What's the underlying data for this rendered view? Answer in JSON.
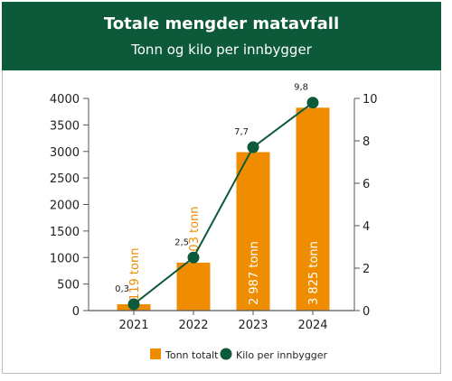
{
  "header": {
    "title": "Totale mengder matavfall",
    "subtitle": "Tonn og kilo per innbygger"
  },
  "colors": {
    "header_bg": "#0d5a3a",
    "bar": "#ef8c00",
    "line": "#0d5a3a",
    "marker": "#0d5a3a",
    "axis_text": "#222222"
  },
  "chart_data": {
    "type": "bar",
    "categories": [
      "2021",
      "2022",
      "2023",
      "2024"
    ],
    "series": [
      {
        "name": "Tonn totalt",
        "type": "bar",
        "axis": "left",
        "values": [
          119,
          903,
          2987,
          3825
        ],
        "labels": [
          "119 tonn",
          "903 tonn",
          "2 987 tonn",
          "3 825 tonn"
        ]
      },
      {
        "name": "Kilo per innbygger",
        "type": "line",
        "axis": "right",
        "values": [
          0.3,
          2.5,
          7.7,
          9.8
        ],
        "labels": [
          "0,3",
          "2,5",
          "7,7",
          "9,8"
        ]
      }
    ],
    "y_left": {
      "ylim": [
        0,
        4000
      ],
      "ticks": [
        "0",
        "500",
        "1000",
        "1500",
        "2000",
        "2500",
        "3000",
        "3500",
        "4000"
      ]
    },
    "y_right": {
      "ylim": [
        0,
        10
      ],
      "ticks": [
        "0",
        "2",
        "4",
        "6",
        "8",
        "10"
      ]
    },
    "grid": false,
    "legend_position": "bottom"
  }
}
